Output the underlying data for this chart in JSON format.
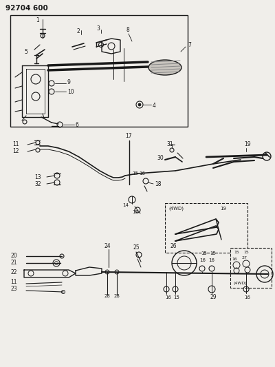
{
  "title": "92704 600",
  "bg_color": "#f0eeea",
  "line_color": "#1a1a1a",
  "fig_width": 4.0,
  "fig_height": 5.33,
  "dpi": 100
}
